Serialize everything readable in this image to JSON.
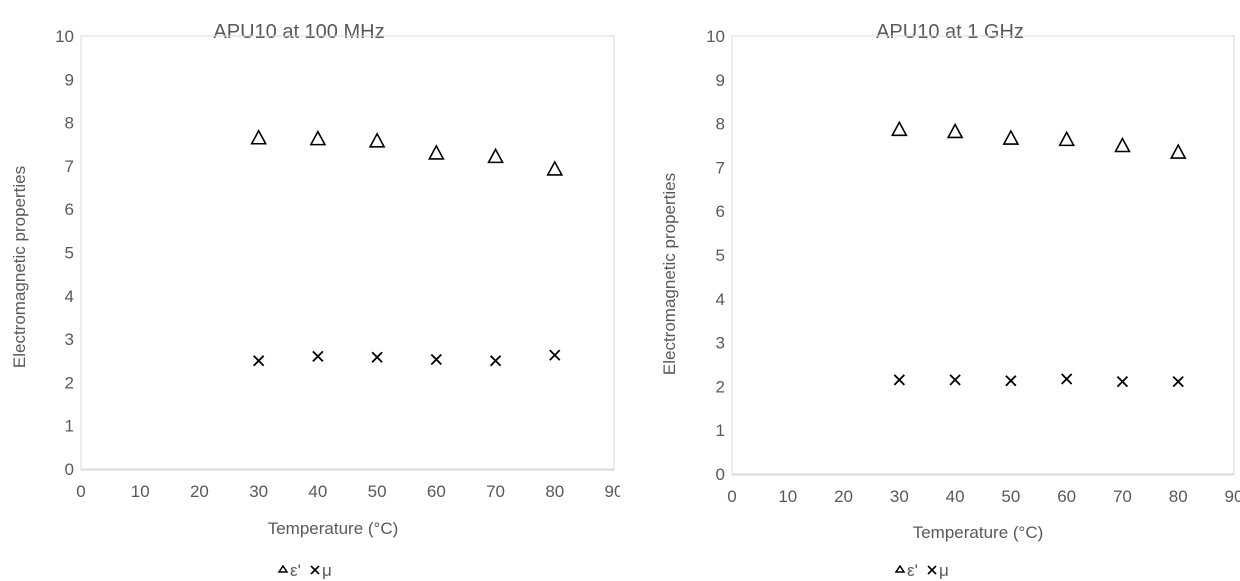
{
  "charts": [
    {
      "type": "scatter",
      "title": "APU10 at 100 MHz",
      "xlabel": "Temperature (°C)",
      "ylabel": "Electromagnetic properties",
      "xlim": [
        0,
        90
      ],
      "ylim": [
        0,
        10
      ],
      "xticks": [
        0,
        10,
        20,
        30,
        40,
        50,
        60,
        70,
        80,
        90
      ],
      "yticks": [
        0,
        1,
        2,
        3,
        4,
        5,
        6,
        7,
        8,
        9,
        10
      ],
      "grid": false,
      "legend_position": "bottom",
      "series": [
        {
          "name": "ε'",
          "marker": "triangle",
          "color": "#000000",
          "x": [
            30,
            40,
            50,
            60,
            70,
            80
          ],
          "y": [
            7.65,
            7.63,
            7.58,
            7.3,
            7.22,
            6.93
          ]
        },
        {
          "name": "μ",
          "marker": "cross",
          "color": "#000000",
          "x": [
            30,
            40,
            50,
            60,
            70,
            80
          ],
          "y": [
            2.5,
            2.6,
            2.58,
            2.53,
            2.5,
            2.63
          ]
        }
      ]
    },
    {
      "type": "scatter",
      "title": "APU10 at 1 GHz",
      "xlabel": "Temperature (°C)",
      "ylabel": "Electromagnetic properties",
      "xlim": [
        0,
        90
      ],
      "ylim": [
        0,
        10
      ],
      "xticks": [
        0,
        10,
        20,
        30,
        40,
        50,
        60,
        70,
        80,
        90
      ],
      "yticks": [
        0,
        1,
        2,
        3,
        4,
        5,
        6,
        7,
        8,
        9,
        10
      ],
      "grid": false,
      "legend_position": "bottom",
      "series": [
        {
          "name": "ε'",
          "marker": "triangle",
          "color": "#000000",
          "x": [
            30,
            40,
            50,
            60,
            70,
            80
          ],
          "y": [
            7.87,
            7.82,
            7.67,
            7.64,
            7.5,
            7.35
          ]
        },
        {
          "name": "μ",
          "marker": "cross",
          "color": "#000000",
          "x": [
            30,
            40,
            50,
            60,
            70,
            80
          ],
          "y": [
            2.15,
            2.15,
            2.13,
            2.17,
            2.11,
            2.11
          ]
        }
      ]
    }
  ]
}
